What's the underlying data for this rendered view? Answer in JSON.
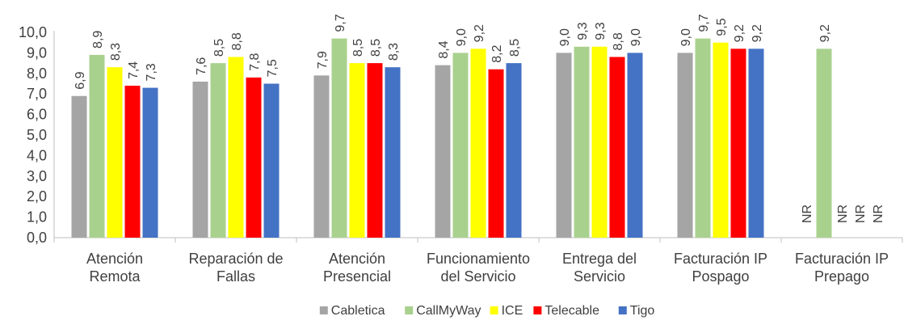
{
  "chart_data": {
    "type": "bar",
    "categories": [
      [
        "Atención",
        "Remota"
      ],
      [
        "Reparación de",
        "Fallas"
      ],
      [
        "Atención",
        "Presencial"
      ],
      [
        "Funcionamiento",
        "del Servicio"
      ],
      [
        "Entrega del",
        "Servicio"
      ],
      [
        "Facturación IP",
        "Pospago"
      ],
      [
        "Facturación IP",
        "Prepago"
      ]
    ],
    "series": [
      {
        "name": "Cabletica",
        "color": "#a5a5a5",
        "values": [
          6.9,
          7.6,
          7.9,
          8.4,
          9.0,
          9.0,
          null
        ],
        "labels": [
          "6,9",
          "7,6",
          "7,9",
          "8,4",
          "9,0",
          "9,0",
          "NR"
        ]
      },
      {
        "name": "CallMyWay",
        "color": "#a9d18e",
        "values": [
          8.9,
          8.5,
          9.7,
          9.0,
          9.3,
          9.7,
          9.2
        ],
        "labels": [
          "8,9",
          "8,5",
          "9,7",
          "9,0",
          "9,3",
          "9,7",
          "9,2"
        ]
      },
      {
        "name": "ICE",
        "color": "#ffff00",
        "values": [
          8.3,
          8.8,
          8.5,
          9.2,
          9.3,
          9.5,
          null
        ],
        "labels": [
          "8,3",
          "8,8",
          "8,5",
          "9,2",
          "9,3",
          "9,5",
          "NR"
        ]
      },
      {
        "name": "Telecable",
        "color": "#ff0000",
        "values": [
          7.4,
          7.8,
          8.5,
          8.2,
          8.8,
          9.2,
          null
        ],
        "labels": [
          "7,4",
          "7,8",
          "8,5",
          "8,2",
          "8,8",
          "9,2",
          "NR"
        ]
      },
      {
        "name": "Tigo",
        "color": "#4472c4",
        "values": [
          7.3,
          7.5,
          8.3,
          8.5,
          9.0,
          9.2,
          null
        ],
        "labels": [
          "7,3",
          "7,5",
          "8,3",
          "8,5",
          "9,0",
          "9,2",
          "NR"
        ]
      }
    ],
    "ylim": [
      0,
      10
    ],
    "yticks": [
      "0,0",
      "1,0",
      "2,0",
      "3,0",
      "4,0",
      "5,0",
      "6,0",
      "7,0",
      "8,0",
      "9,0",
      "10,0"
    ],
    "grid": false,
    "legend_position": "bottom",
    "title": "",
    "xlabel": "",
    "ylabel": ""
  }
}
